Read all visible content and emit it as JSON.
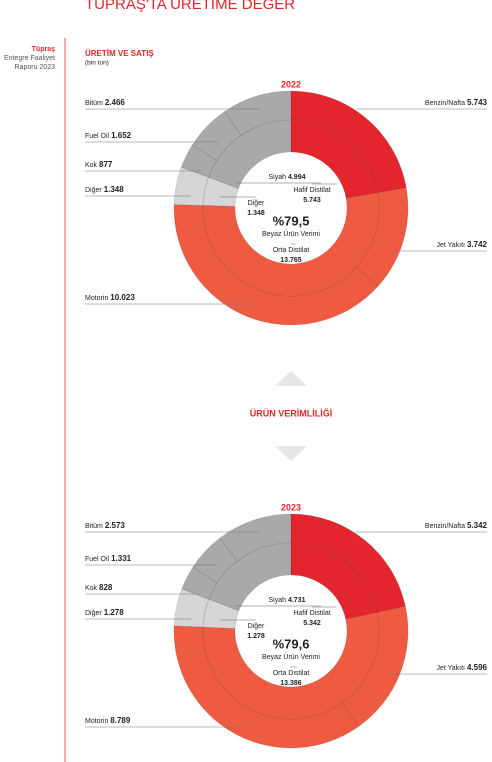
{
  "header": {
    "title": "TÜPRAŞ'TA ÜRETİME DEĞER"
  },
  "sidebar": {
    "company": "Tüpraş",
    "line1": "Entegre Faaliyet",
    "line2": "Raporu 2023"
  },
  "section": {
    "title": "ÜRETİM VE SATIŞ",
    "unit": "(bin ton)"
  },
  "divider": {
    "label": "ÜRÜN VERİMLİLİĞİ"
  },
  "chart_data": [
    {
      "type": "donut",
      "title": "2022",
      "center": {
        "text": "%79,5",
        "caption": "Beyaz Ürün Verimi"
      },
      "rings": [
        {
          "categories": [
            "Benzin/Nafta",
            "Jet Yakıtı",
            "Motorin",
            "Diğer",
            "Kok",
            "Fuel Oil",
            "Bitüm"
          ],
          "values": [
            5743,
            3742,
            10023,
            1348,
            877,
            1652,
            2466
          ],
          "value_labels": [
            "5.743",
            "3.742",
            "10.023",
            "1.348",
            "877",
            "1.652",
            "2.466"
          ],
          "colors": [
            "#e3262d",
            "#ef5b41",
            "#ef5b41",
            "#d6d6d6",
            "#a9a9ab",
            "#a9a9ab",
            "#a9a9ab"
          ]
        },
        {
          "categories": [
            "Hafif Distilat",
            "Orta Distilat",
            "Diğer",
            "Siyah"
          ],
          "values": [
            5743,
            13765,
            1348,
            4994
          ],
          "value_labels": [
            "5.743",
            "13.765",
            "1.348",
            "4.994"
          ],
          "colors": [
            "#e3262d",
            "#ef5b41",
            "#d6d6d6",
            "#a9a9ab"
          ]
        }
      ]
    },
    {
      "type": "donut",
      "title": "2023",
      "center": {
        "text": "%79,6",
        "caption": "Beyaz Ürün Verimi"
      },
      "rings": [
        {
          "categories": [
            "Benzin/Nafta",
            "Jet Yakıtı",
            "Motorin",
            "Diğer",
            "Kok",
            "Fuel Oil",
            "Bitüm"
          ],
          "values": [
            5342,
            4596,
            8789,
            1278,
            828,
            1331,
            2573
          ],
          "value_labels": [
            "5.342",
            "4.596",
            "8.789",
            "1.278",
            "828",
            "1.331",
            "2.573"
          ],
          "colors": [
            "#e3262d",
            "#ef5b41",
            "#ef5b41",
            "#d6d6d6",
            "#a9a9ab",
            "#a9a9ab",
            "#a9a9ab"
          ]
        },
        {
          "categories": [
            "Hafif Distilat",
            "Orta Distilat",
            "Diğer",
            "Siyah"
          ],
          "values": [
            5342,
            13386,
            1278,
            4731
          ],
          "value_labels": [
            "5.342",
            "13.386",
            "1.278",
            "4.731"
          ],
          "colors": [
            "#e3262d",
            "#ef5b41",
            "#d6d6d6",
            "#a9a9ab"
          ]
        }
      ]
    }
  ]
}
